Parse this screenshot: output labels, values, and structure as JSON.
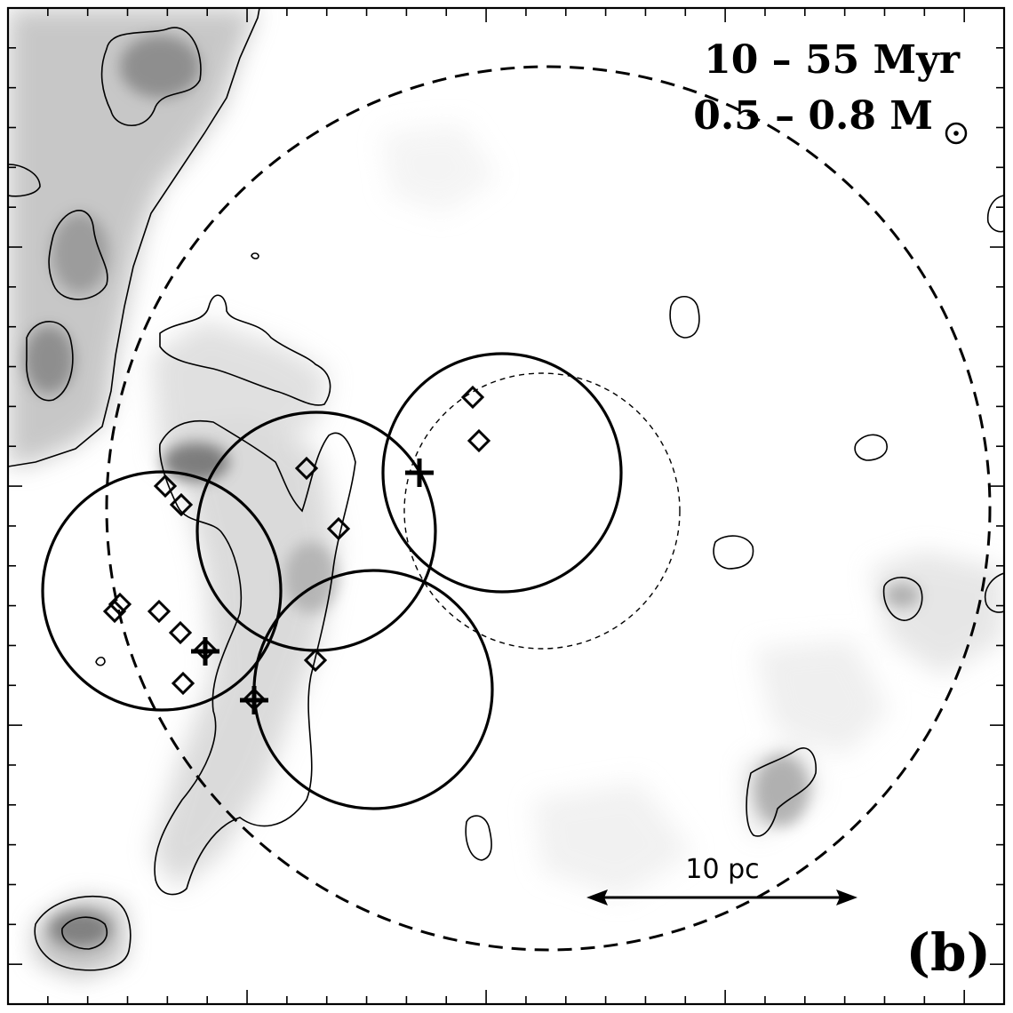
{
  "figure": {
    "age_label": "10 – 55 Myr",
    "mass_label": "0.5 – 0.8 M",
    "solar_symbol": "sun-symbol",
    "panel_label": "(b)",
    "scale_bar_label": "10 pc"
  },
  "style": {
    "frame_color": "#000000",
    "density_color": "#8c8c8c",
    "background_color": "#ffffff"
  }
}
